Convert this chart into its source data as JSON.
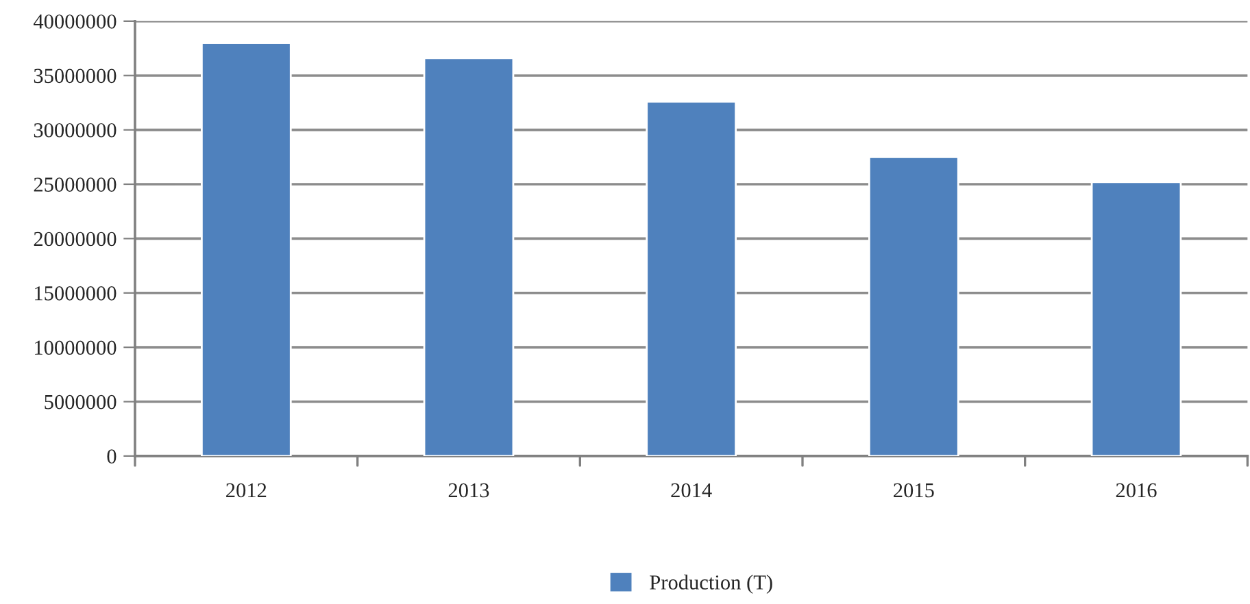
{
  "chart_data": {
    "type": "bar",
    "categories": [
      "2012",
      "2013",
      "2014",
      "2015",
      "2016"
    ],
    "series": [
      {
        "name": "Production (T)",
        "color": "#4f81bd",
        "values": [
          38000000,
          36600000,
          32600000,
          27500000,
          25200000
        ]
      }
    ],
    "ylim": [
      0,
      40000000
    ],
    "yticks": [
      0,
      5000000,
      10000000,
      15000000,
      20000000,
      25000000,
      30000000,
      35000000,
      40000000
    ],
    "grid": "y",
    "legend": "bottom"
  }
}
